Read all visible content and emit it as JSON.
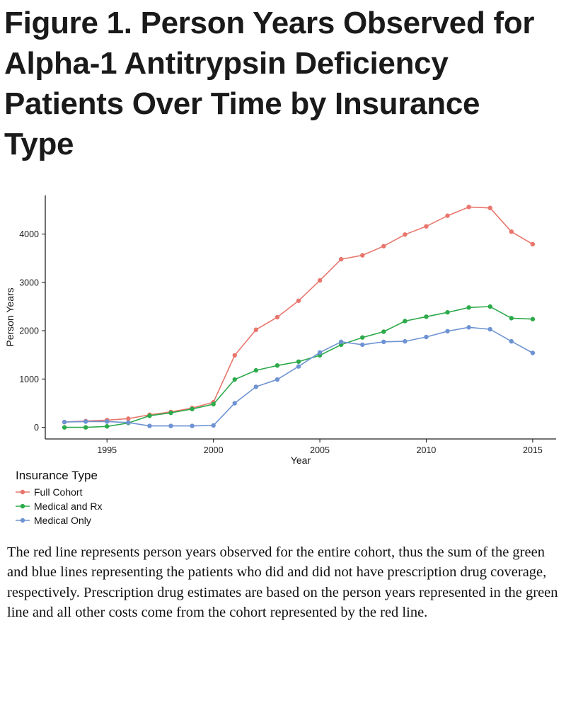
{
  "title": "Figure 1. Person Years Observed for Alpha-1 Antitrypsin Deficiency Patients Over Time by Insurance Type",
  "caption": "The red line represents person years observed for the entire cohort, thus the sum of the green and blue lines representing the patients who did and did not have prescription drug coverage, respectively. Prescription drug estimates are based on the person years represented in the green line and all other costs come from the cohort represented by the red line.",
  "chart_data": {
    "type": "line",
    "xlabel": "Year",
    "ylabel": "Person Years",
    "x": [
      1993,
      1994,
      1995,
      1996,
      1997,
      1998,
      1999,
      2000,
      2001,
      2002,
      2003,
      2004,
      2005,
      2006,
      2007,
      2008,
      2009,
      2010,
      2011,
      2012,
      2013,
      2014,
      2015
    ],
    "xticks": [
      1995,
      2000,
      2005,
      2010,
      2015
    ],
    "yticks": [
      0,
      1000,
      2000,
      3000,
      4000
    ],
    "xlim": [
      1992.1,
      2016.1
    ],
    "ylim": [
      -240,
      4800
    ],
    "grid": false,
    "legend_title": "Insurance Type",
    "legend_position": "bottom-left",
    "series": [
      {
        "name": "Full Cohort",
        "color": "#E8766D",
        "values": [
          110,
          130,
          150,
          180,
          260,
          320,
          400,
          520,
          1490,
          2020,
          2280,
          2620,
          3040,
          3480,
          3560,
          3750,
          3990,
          4160,
          4380,
          4560,
          4540,
          4050,
          3790
        ]
      },
      {
        "name": "Medical and Rx",
        "color": "#2DAA4B",
        "values": [
          0,
          0,
          20,
          90,
          240,
          300,
          380,
          480,
          990,
          1180,
          1280,
          1360,
          1490,
          1710,
          1860,
          1980,
          2200,
          2290,
          2380,
          2480,
          2500,
          2260,
          2240
        ]
      },
      {
        "name": "Medical Only",
        "color": "#6E93D3",
        "values": [
          110,
          120,
          120,
          100,
          30,
          30,
          30,
          40,
          500,
          840,
          990,
          1260,
          1550,
          1770,
          1710,
          1770,
          1780,
          1870,
          1990,
          2070,
          2030,
          1780,
          1540
        ]
      }
    ]
  }
}
